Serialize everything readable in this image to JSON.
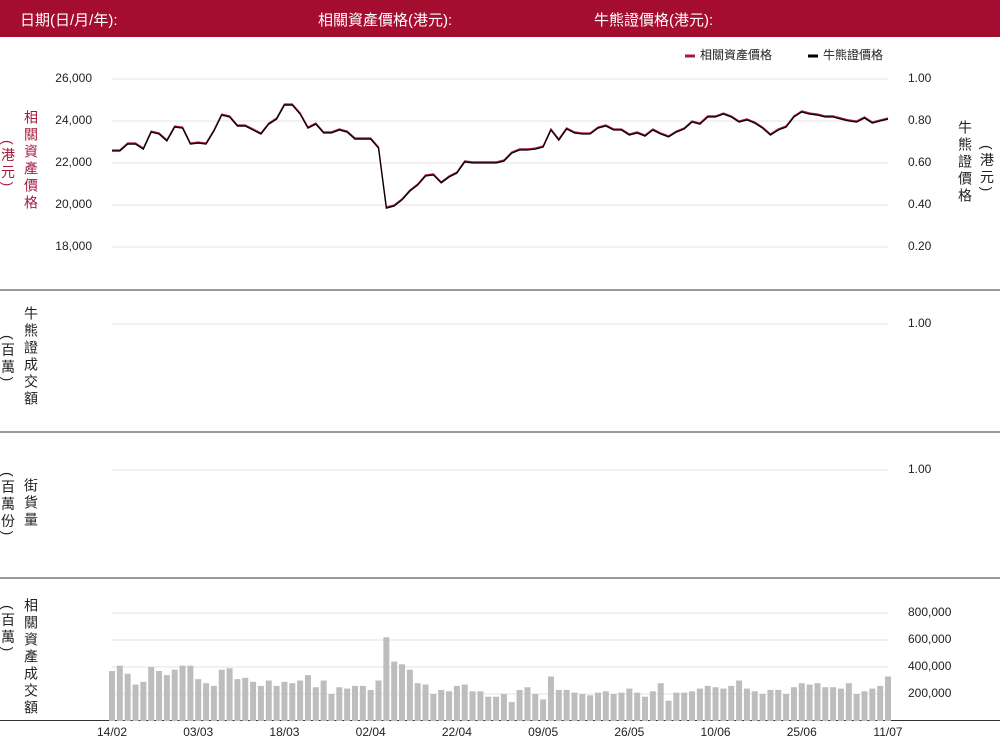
{
  "header": {
    "date_label": "日期(日/月/年):",
    "asset_label": "相關資產價格(港元):",
    "cbbc_label": "牛熊證價格(港元):"
  },
  "chart_data": [
    {
      "type": "line",
      "legend": "top-right",
      "grid": true,
      "ylabel": "相關資產價格",
      "ylabel_unit": "(港元)",
      "y2label": "牛熊證價格",
      "y2label_unit": "(港元)",
      "ylim": [
        17000,
        26000
      ],
      "yticks": [
        {
          "value": 26000,
          "label": "26,000"
        },
        {
          "value": 24000,
          "label": "24,000"
        },
        {
          "value": 22000,
          "label": "22,000"
        },
        {
          "value": 20000,
          "label": "20,000"
        },
        {
          "value": 18000,
          "label": "18,000"
        }
      ],
      "y2lim": [
        0.1,
        1.0
      ],
      "y2ticks": [
        {
          "value": 1,
          "label": "1.00"
        },
        {
          "value": 0.8,
          "label": "0.80"
        },
        {
          "value": 0.6,
          "label": "0.60"
        },
        {
          "value": 0.4,
          "label": "0.40"
        },
        {
          "value": 0.2,
          "label": "0.20"
        }
      ],
      "series": [
        {
          "name": "相關資產價格",
          "color": "#a6193c",
          "axis": "y",
          "values": [
            22620,
            22620,
            22950,
            22950,
            22710,
            23520,
            23430,
            23100,
            23760,
            23710,
            22950,
            23000,
            22950,
            23570,
            24330,
            24240,
            23810,
            23810,
            23620,
            23430,
            23900,
            24140,
            24810,
            24810,
            24380,
            23710,
            23900,
            23480,
            23480,
            23620,
            23520,
            23190,
            23190,
            23190,
            22760,
            19900,
            20000,
            20290,
            20710,
            21000,
            21430,
            21480,
            21100,
            21380,
            21570,
            22100,
            22050,
            22050,
            22050,
            22050,
            22140,
            22520,
            22670,
            22670,
            22710,
            22810,
            23620,
            23140,
            23670,
            23480,
            23430,
            23430,
            23710,
            23810,
            23620,
            23620,
            23380,
            23480,
            23330,
            23620,
            23430,
            23290,
            23520,
            23670,
            24000,
            23900,
            24240,
            24240,
            24380,
            24240,
            24000,
            24100,
            23950,
            23710,
            23380,
            23620,
            23760,
            24240,
            24480,
            24380,
            24330,
            24240,
            24240,
            24140,
            24050,
            24000,
            24190,
            23950,
            24050,
            24140
          ]
        },
        {
          "name": "牛熊證價格",
          "color": "#000000",
          "axis": "y2",
          "values": [
            0.657,
            0.657,
            0.69,
            0.69,
            0.666,
            0.747,
            0.738,
            0.705,
            0.771,
            0.766,
            0.69,
            0.695,
            0.69,
            0.752,
            0.828,
            0.819,
            0.776,
            0.776,
            0.757,
            0.738,
            0.785,
            0.809,
            0.876,
            0.876,
            0.833,
            0.766,
            0.785,
            0.743,
            0.743,
            0.757,
            0.747,
            0.714,
            0.714,
            0.714,
            0.671,
            0.385,
            0.395,
            0.424,
            0.466,
            0.495,
            0.538,
            0.543,
            0.505,
            0.533,
            0.552,
            0.605,
            0.6,
            0.6,
            0.6,
            0.6,
            0.609,
            0.647,
            0.662,
            0.662,
            0.666,
            0.676,
            0.757,
            0.709,
            0.762,
            0.743,
            0.738,
            0.738,
            0.766,
            0.776,
            0.757,
            0.757,
            0.733,
            0.743,
            0.728,
            0.757,
            0.738,
            0.724,
            0.747,
            0.762,
            0.795,
            0.785,
            0.819,
            0.819,
            0.833,
            0.819,
            0.795,
            0.805,
            0.79,
            0.766,
            0.733,
            0.757,
            0.771,
            0.819,
            0.843,
            0.833,
            0.828,
            0.819,
            0.819,
            0.809,
            0.8,
            0.795,
            0.814,
            0.79,
            0.8,
            0.809
          ]
        }
      ]
    },
    {
      "type": "line",
      "grid": true,
      "yaxis_position": "right",
      "ylabel": "牛熊證成交額",
      "ylabel_unit": "(百萬)",
      "ylim": [
        0,
        1.2
      ],
      "yticks": [
        {
          "value": 1,
          "label": "1.00"
        }
      ],
      "series": []
    },
    {
      "type": "line",
      "grid": true,
      "yaxis_position": "right",
      "ylabel": "街貨量",
      "ylabel_unit": "(百萬份)",
      "ylim": [
        0,
        1.2
      ],
      "yticks": [
        {
          "value": 1,
          "label": "1.00"
        }
      ],
      "series": []
    },
    {
      "type": "bar",
      "grid": true,
      "yaxis_position": "right",
      "ylabel": "相關資產成交額",
      "ylabel_unit": "(百萬)",
      "color": "#bdbdbd",
      "ylim": [
        0,
        800000
      ],
      "yticks": [
        {
          "value": 800000,
          "label": "800,000"
        },
        {
          "value": 600000,
          "label": "600,000"
        },
        {
          "value": 400000,
          "label": "400,000"
        },
        {
          "value": 200000,
          "label": "200,000"
        }
      ],
      "categories": [
        "14/02",
        null,
        null,
        null,
        null,
        null,
        null,
        null,
        null,
        null,
        null,
        "03/03",
        null,
        null,
        null,
        null,
        null,
        null,
        null,
        null,
        null,
        null,
        "18/03",
        null,
        null,
        null,
        null,
        null,
        null,
        null,
        null,
        null,
        null,
        "02/04",
        null,
        null,
        null,
        null,
        null,
        null,
        null,
        null,
        null,
        null,
        "22/04",
        null,
        null,
        null,
        null,
        null,
        null,
        null,
        null,
        null,
        null,
        "09/05",
        null,
        null,
        null,
        null,
        null,
        null,
        null,
        null,
        null,
        null,
        "26/05",
        null,
        null,
        null,
        null,
        null,
        null,
        null,
        null,
        null,
        null,
        "10/06",
        null,
        null,
        null,
        null,
        null,
        null,
        null,
        null,
        null,
        null,
        "25/06",
        null,
        null,
        null,
        null,
        null,
        null,
        null,
        null,
        null,
        null,
        "11/07"
      ],
      "values": [
        370000,
        410000,
        350000,
        270000,
        290000,
        400000,
        370000,
        340000,
        380000,
        410000,
        410000,
        310000,
        280000,
        260000,
        380000,
        390000,
        310000,
        320000,
        290000,
        260000,
        300000,
        260000,
        290000,
        280000,
        300000,
        340000,
        250000,
        300000,
        200000,
        250000,
        240000,
        260000,
        260000,
        230000,
        300000,
        620000,
        440000,
        420000,
        380000,
        280000,
        270000,
        200000,
        230000,
        220000,
        260000,
        270000,
        220000,
        220000,
        180000,
        180000,
        200000,
        140000,
        230000,
        250000,
        200000,
        160000,
        330000,
        230000,
        230000,
        210000,
        200000,
        190000,
        210000,
        220000,
        200000,
        210000,
        240000,
        210000,
        180000,
        220000,
        280000,
        150000,
        210000,
        210000,
        220000,
        240000,
        260000,
        250000,
        240000,
        260000,
        300000,
        240000,
        220000,
        200000,
        230000,
        230000,
        200000,
        250000,
        280000,
        270000,
        280000,
        250000,
        250000,
        240000,
        280000,
        200000,
        220000,
        240000,
        260000,
        330000
      ]
    }
  ]
}
